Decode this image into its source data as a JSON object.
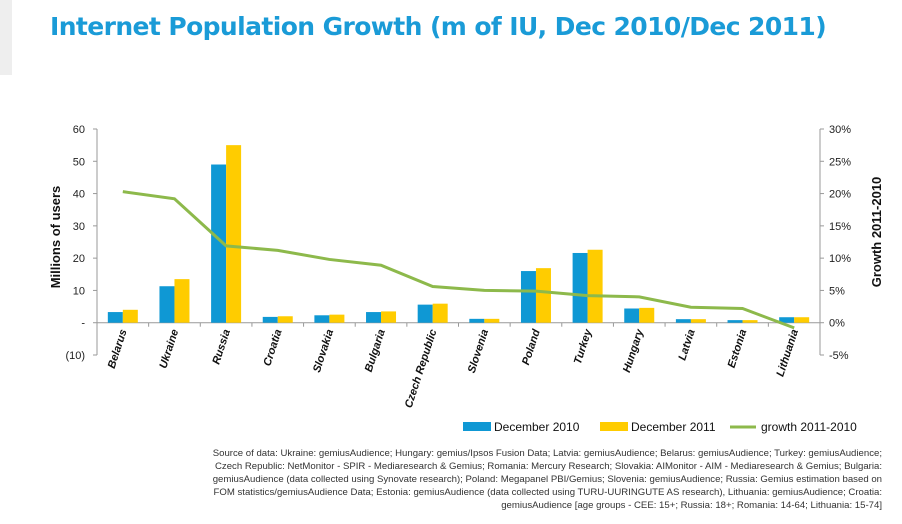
{
  "title": "Internet Population Growth (m of IU, Dec 2010/Dec 2011)",
  "chart_data": {
    "type": "bar+line",
    "categories": [
      "Belarus",
      "Ukraine",
      "Russia",
      "Croatia",
      "Slovakia",
      "Bulgaria",
      "Czech Republic",
      "Slovenia",
      "Poland",
      "Turkey",
      "Hungary",
      "Latvia",
      "Estonia",
      "Lithuania"
    ],
    "series": [
      {
        "name": "December 2010",
        "type": "bar",
        "axis": "left",
        "color": "#0f98d4",
        "values": [
          3.3,
          11.3,
          49.0,
          1.8,
          2.3,
          3.3,
          5.6,
          1.2,
          16.0,
          21.6,
          4.4,
          1.1,
          0.8,
          1.7
        ]
      },
      {
        "name": "December 2011",
        "type": "bar",
        "axis": "left",
        "color": "#ffcc00",
        "values": [
          4.0,
          13.5,
          55.0,
          2.0,
          2.5,
          3.5,
          5.9,
          1.2,
          16.9,
          22.6,
          4.6,
          1.1,
          0.8,
          1.7
        ]
      },
      {
        "name": "growth 2011-2010",
        "type": "line",
        "axis": "right",
        "color": "#8db94b",
        "values": [
          20.3,
          19.2,
          11.9,
          11.2,
          9.8,
          8.9,
          5.6,
          5.0,
          4.9,
          4.2,
          4.0,
          2.4,
          2.2,
          -0.8
        ]
      }
    ],
    "ylabel": "Millions of users",
    "y2label": "Growth 2011-2010",
    "ylim": [
      -10,
      60
    ],
    "y2lim": [
      -5,
      30
    ],
    "yticks": [
      "(10)",
      "-",
      "10",
      "20",
      "30",
      "40",
      "50",
      "60"
    ],
    "y2ticks": [
      "-5%",
      "0%",
      "5%",
      "10%",
      "15%",
      "20%",
      "25%",
      "30%"
    ],
    "legend": "bottom-right",
    "grid": false
  },
  "source": "Source of data: Ukraine: gemiusAudience; Hungary: gemius/Ipsos Fusion Data;  Latvia: gemiusAudience; Belarus: gemiusAudience; Turkey: gemiusAudience; Czech Republic: NetMonitor - SPIR - Mediaresearch & Gemius; Romania: Mercury Research; Slovakia: AIMonitor - AIM - Mediaresearch & Gemius; Bulgaria: gemiusAudience (data collected using Synovate research); Poland: Megapanel PBI/Gemius; Slovenia: gemiusAudience; Russia: Gemius estimation based on FOM statistics/gemiusAudience Data; Estonia: gemiusAudience (data collected using TURU-UURINGUTE AS research), Lithuania: gemiusAudience; Croatia: gemiusAudience [age groups - CEE: 15+; Russia: 18+; Romania: 14-64; Lithuania: 15-74]"
}
